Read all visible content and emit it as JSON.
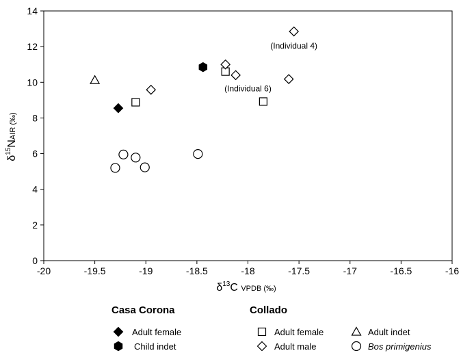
{
  "chart_data": {
    "type": "scatter",
    "xlim": [
      -20,
      -16
    ],
    "ylim": [
      0,
      14
    ],
    "x_ticks": [
      -20,
      -19.5,
      -19,
      -18.5,
      -18,
      -17.5,
      -17,
      -16.5,
      -16
    ],
    "y_ticks": [
      0,
      2,
      4,
      6,
      8,
      10,
      12,
      14
    ],
    "x_tick_labels": [
      "-20",
      "-19.5",
      "-19",
      "-18.5",
      "-18",
      "-17.5",
      "-17",
      "-16.5",
      "-16"
    ],
    "y_tick_labels": [
      "0",
      "2",
      "4",
      "6",
      "8",
      "10",
      "12",
      "14"
    ],
    "xlabel": {
      "prefix": "δ",
      "sup": "13",
      "main": "C ",
      "sub": "VPDB (‰)"
    },
    "ylabel": {
      "prefix": "δ",
      "sup": "15",
      "main": "N",
      "sub": "AIR (‰)"
    },
    "grid": false,
    "series": [
      {
        "site": "Casa Corona",
        "name": "Adult female",
        "marker": "diamond",
        "fill": "#000000",
        "points": [
          {
            "x": -19.27,
            "y": 8.55
          }
        ]
      },
      {
        "site": "Casa Corona",
        "name": "Child indet",
        "marker": "hexagon",
        "fill": "#000000",
        "points": [
          {
            "x": -18.44,
            "y": 10.85
          }
        ]
      },
      {
        "site": "Collado",
        "name": "Adult female",
        "marker": "square",
        "fill": "#ffffff",
        "points": [
          {
            "x": -19.1,
            "y": 8.88
          },
          {
            "x": -18.22,
            "y": 10.6
          },
          {
            "x": -17.85,
            "y": 8.92
          }
        ]
      },
      {
        "site": "Collado",
        "name": "Adult indet",
        "marker": "triangle",
        "fill": "#ffffff",
        "points": [
          {
            "x": -19.5,
            "y": 10.12
          }
        ]
      },
      {
        "site": "Collado",
        "name": "Adult male",
        "marker": "diamond",
        "fill": "#ffffff",
        "points": [
          {
            "x": -18.95,
            "y": 9.58
          },
          {
            "x": -18.22,
            "y": 11.0
          },
          {
            "x": -18.12,
            "y": 10.4
          },
          {
            "x": -17.6,
            "y": 10.18
          },
          {
            "x": -17.55,
            "y": 12.85
          }
        ]
      },
      {
        "site": "Collado",
        "name": "Bos primigenius",
        "marker": "circle",
        "fill": "#ffffff",
        "points": [
          {
            "x": -19.3,
            "y": 5.2
          },
          {
            "x": -19.22,
            "y": 5.95
          },
          {
            "x": -19.1,
            "y": 5.78
          },
          {
            "x": -19.01,
            "y": 5.23
          },
          {
            "x": -18.49,
            "y": 5.98
          }
        ]
      }
    ],
    "annotations": [
      {
        "text": "(Individual 4)",
        "x": -17.55,
        "y": 12.05
      },
      {
        "text": "(Individual 6)",
        "x": -18.0,
        "y": 9.65
      }
    ],
    "legend": {
      "placement": "bottom",
      "groups": [
        {
          "title": "Casa Corona",
          "items": [
            {
              "label": "Adult female",
              "marker": "diamond",
              "fill": "#000000"
            },
            {
              "label": "Child indet",
              "marker": "hexagon",
              "fill": "#000000"
            }
          ]
        },
        {
          "title": "Collado",
          "items": [
            {
              "label": "Adult female",
              "marker": "square",
              "fill": "#ffffff"
            },
            {
              "label": "Adult indet",
              "marker": "triangle",
              "fill": "#ffffff"
            },
            {
              "label": "Adult male",
              "marker": "diamond",
              "fill": "#ffffff"
            },
            {
              "label": "Bos primigenius",
              "marker": "circle",
              "fill": "#ffffff",
              "italic": true
            }
          ]
        }
      ]
    }
  }
}
